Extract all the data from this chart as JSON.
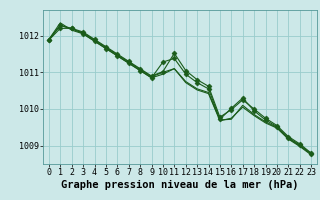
{
  "title": "Graphe pression niveau de la mer (hPa)",
  "background_color": "#cce8e8",
  "grid_color": "#99cccc",
  "line_color": "#1a5c1a",
  "marker_color": "#1a5c1a",
  "xlim": [
    -0.5,
    23.5
  ],
  "ylim": [
    1008.5,
    1012.7
  ],
  "yticks": [
    1009,
    1010,
    1011,
    1012
  ],
  "xticks": [
    0,
    1,
    2,
    3,
    4,
    5,
    6,
    7,
    8,
    9,
    10,
    11,
    12,
    13,
    14,
    15,
    16,
    17,
    18,
    19,
    20,
    21,
    22,
    23
  ],
  "series": [
    [
      1011.9,
      1012.35,
      1012.15,
      1012.05,
      1011.85,
      1011.65,
      1011.45,
      1011.25,
      1011.05,
      1010.85,
      1010.95,
      1011.1,
      1010.75,
      1010.55,
      1010.45,
      1009.7,
      1009.72,
      1010.1,
      1009.85,
      1009.65,
      1009.5,
      1009.2,
      1009.0,
      1008.78
    ],
    [
      1011.9,
      1012.28,
      1012.18,
      1012.08,
      1011.88,
      1011.68,
      1011.48,
      1011.28,
      1011.08,
      1010.88,
      1011.0,
      1011.1,
      1010.72,
      1010.52,
      1010.42,
      1009.68,
      1009.75,
      1010.05,
      1009.82,
      1009.62,
      1009.48,
      1009.18,
      1008.98,
      1008.75
    ],
    [
      1011.88,
      1012.2,
      1012.2,
      1012.05,
      1011.85,
      1011.65,
      1011.45,
      1011.25,
      1011.05,
      1010.85,
      1011.28,
      1011.38,
      1010.95,
      1010.72,
      1010.55,
      1009.72,
      1010.02,
      1010.3,
      1009.95,
      1009.7,
      1009.52,
      1009.22,
      1009.02,
      1008.78
    ],
    [
      1011.88,
      1012.28,
      1012.2,
      1012.1,
      1011.9,
      1011.7,
      1011.5,
      1011.3,
      1011.1,
      1010.9,
      1011.02,
      1011.52,
      1011.05,
      1010.8,
      1010.62,
      1009.78,
      1009.98,
      1010.25,
      1010.0,
      1009.75,
      1009.55,
      1009.25,
      1009.05,
      1008.8
    ]
  ],
  "show_markers": [
    false,
    false,
    true,
    true
  ],
  "marker_size": 2.5,
  "line_width": 0.8,
  "title_fontsize": 7.5,
  "tick_fontsize": 6.0
}
